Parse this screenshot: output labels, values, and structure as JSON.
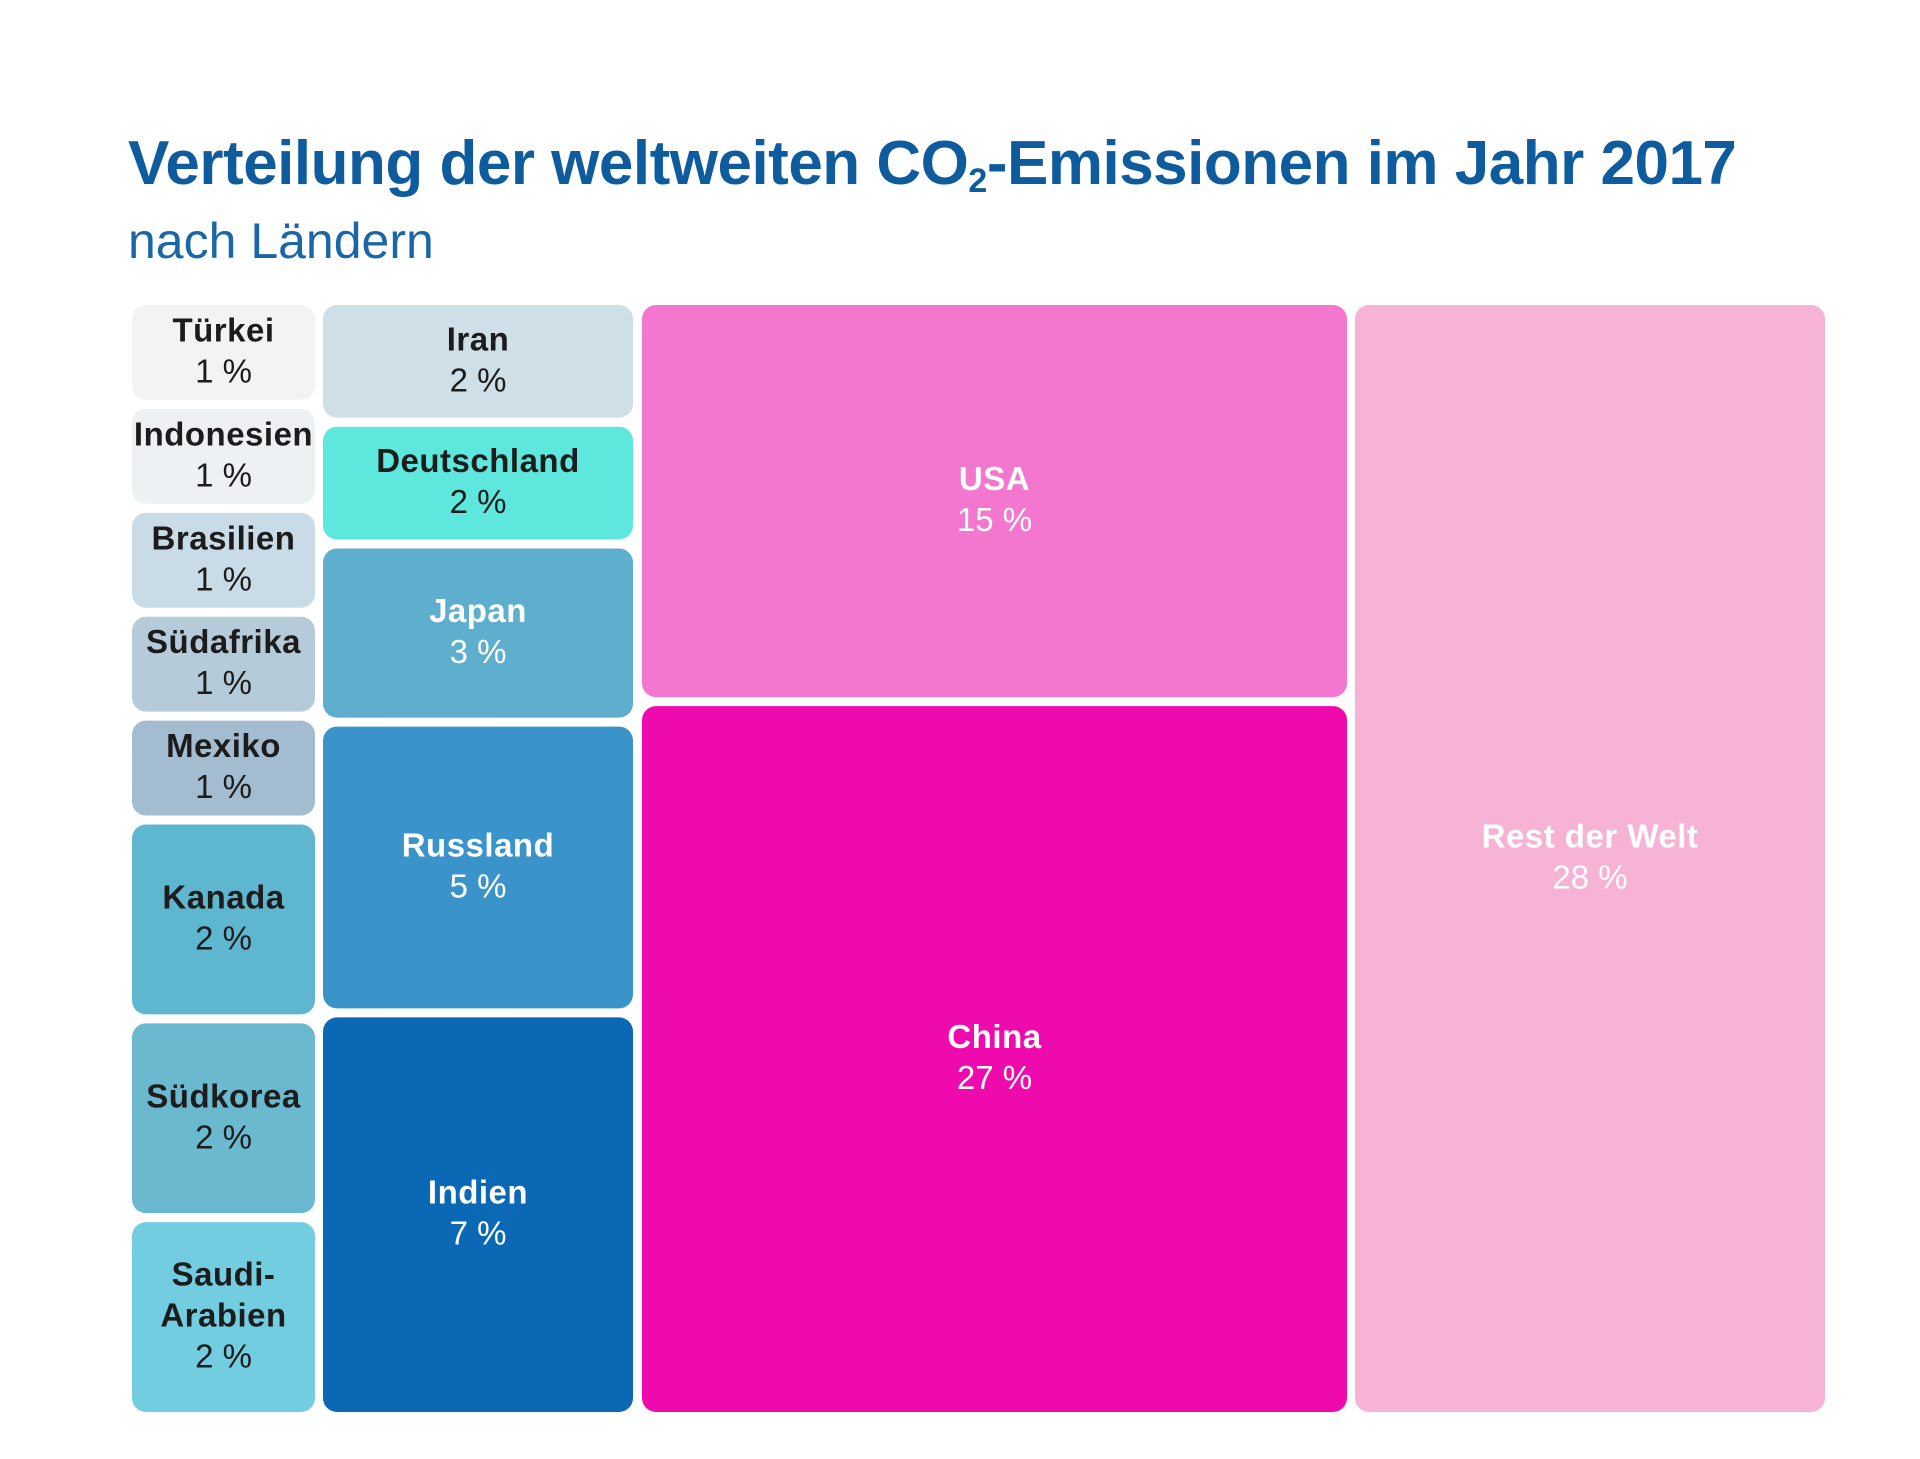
{
  "title_part1": "Verteilung der weltweiten CO",
  "title_sub": "2",
  "title_part2": "-Emissionen im Jahr 2017",
  "subtitle": "nach Ländern",
  "chart_data": {
    "type": "treemap",
    "unit": "%",
    "items": [
      {
        "name": "Türkei",
        "value": 1,
        "label": "1 %",
        "color": "#f1f3f5",
        "text": "#1c1c1c"
      },
      {
        "name": "Indonesien",
        "value": 1,
        "label": "1 %",
        "color": "#eef1f4",
        "text": "#1c1c1c"
      },
      {
        "name": "Brasilien",
        "value": 1,
        "label": "1 %",
        "color": "#c9dbe6",
        "text": "#1c1c1c"
      },
      {
        "name": "Südafrika",
        "value": 1,
        "label": "1 %",
        "color": "#b6cbd9",
        "text": "#1c1c1c"
      },
      {
        "name": "Mexiko",
        "value": 1,
        "label": "1 %",
        "color": "#a3bccf",
        "text": "#1c1c1c"
      },
      {
        "name": "Kanada",
        "value": 2,
        "label": "2 %",
        "color": "#5fb6cf",
        "text": "#1c1c1c"
      },
      {
        "name": "Südkorea",
        "value": 2,
        "label": "2 %",
        "color": "#6ab9cf",
        "text": "#1c1c1c"
      },
      {
        "name": "Saudi-\nArabien",
        "value": 2,
        "label": "2 %",
        "color": "#72cde0",
        "text": "#1c1c1c"
      },
      {
        "name": "Iran",
        "value": 2,
        "label": "2 %",
        "color": "#cfdfe8",
        "text": "#1c1c1c"
      },
      {
        "name": "Deutschland",
        "value": 2,
        "label": "2 %",
        "color": "#5ee8dd",
        "text": "#1c1c1c"
      },
      {
        "name": "Japan",
        "value": 3,
        "label": "3 %",
        "color": "#5eaecd",
        "text": "#ffffff"
      },
      {
        "name": "Russland",
        "value": 5,
        "label": "5 %",
        "color": "#3b94c9",
        "text": "#ffffff"
      },
      {
        "name": "Indien",
        "value": 7,
        "label": "7 %",
        "color": "#0a68b4",
        "text": "#ffffff"
      },
      {
        "name": "USA",
        "value": 15,
        "label": "15 %",
        "color": "#f477cf",
        "text": "#ffffff"
      },
      {
        "name": "China",
        "value": 27,
        "label": "27 %",
        "color": "#ee0aac",
        "text": "#ffffff"
      },
      {
        "name": "Rest der Welt",
        "value": 28,
        "label": "28 %",
        "color": "#f7b3d6",
        "text": "#ffffff"
      }
    ]
  }
}
